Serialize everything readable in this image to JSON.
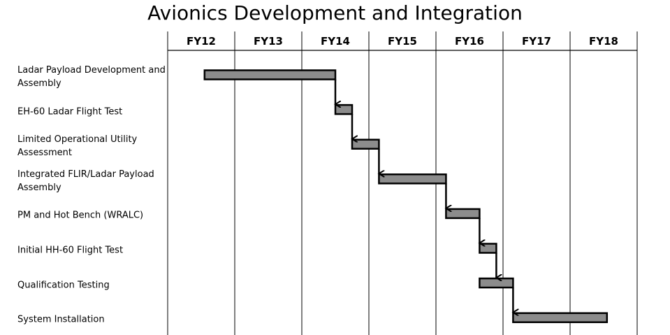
{
  "chart_data": {
    "type": "gantt",
    "title": "Avionics Development and Integration",
    "categories": [
      "FY12",
      "FY13",
      "FY14",
      "FY15",
      "FY16",
      "FY17",
      "FY18"
    ],
    "tasks": [
      {
        "name": "Ladar Payload Development and Assembly",
        "start": 0.55,
        "end": 2.5
      },
      {
        "name": "EH-60 Ladar Flight Test",
        "start": 2.5,
        "end": 2.75
      },
      {
        "name": "Limited Operational Utility Assessment",
        "start": 2.75,
        "end": 3.15
      },
      {
        "name": "Integrated FLIR/Ladar Payload Assembly",
        "start": 3.15,
        "end": 4.15
      },
      {
        "name": "PM and Hot Bench (WRALC)",
        "start": 4.15,
        "end": 4.65
      },
      {
        "name": "Initial HH-60 Flight Test",
        "start": 4.65,
        "end": 4.9
      },
      {
        "name": "Qualification Testing",
        "start": 4.65,
        "end": 5.15
      },
      {
        "name": "System Installation",
        "start": 5.15,
        "end": 6.55
      }
    ],
    "dependencies": [
      [
        0,
        1
      ],
      [
        1,
        2
      ],
      [
        2,
        3
      ],
      [
        3,
        4
      ],
      [
        4,
        5
      ],
      [
        5,
        6
      ],
      [
        6,
        7
      ]
    ],
    "grid": true,
    "colors": {
      "bar": "#8c8c8c",
      "outline": "#000000",
      "grid": "#000000"
    }
  }
}
